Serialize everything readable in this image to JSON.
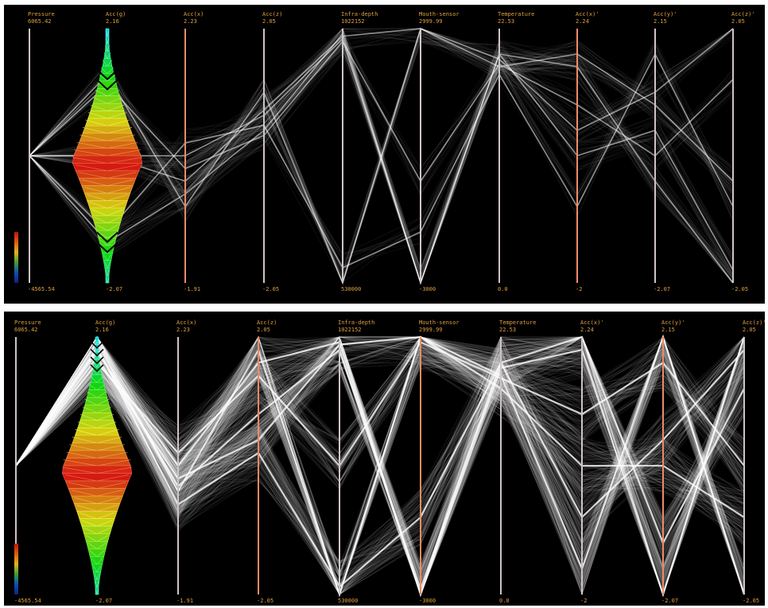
{
  "colors": {
    "background": "#000000",
    "axis_label": "#e0a040",
    "axis_line_default": "#cfc4c4",
    "axis_line_highlight": "#f08a68",
    "polyline": "#ffffff",
    "selection_outline": "#000000"
  },
  "colorbar": {
    "colors": [
      "#c81010",
      "#d86010",
      "#e8b020",
      "#40a030",
      "#1050b0",
      "#102080"
    ]
  },
  "chart_data": [
    {
      "type": "parallel-coordinates",
      "panel": "top",
      "density": "sparse",
      "axes": [
        {
          "name": "Pressure",
          "max": "6065.42",
          "min": "-4565.54",
          "highlight": false
        },
        {
          "name": "Acc(g)",
          "max": "2.16",
          "min": "-2.07",
          "highlight": false,
          "violin": true
        },
        {
          "name": "Acc(x)",
          "max": "2.23",
          "min": "-1.91",
          "highlight": true
        },
        {
          "name": "Acc(z)",
          "max": "2.05",
          "min": "-2.05",
          "highlight": false
        },
        {
          "name": "Infra-depth",
          "max": "1022152",
          "min": "530000",
          "highlight": false
        },
        {
          "name": "Mouth-sensor",
          "max": "2999.99",
          "min": "-3000",
          "highlight": false
        },
        {
          "name": "Temperature",
          "max": "22.53",
          "min": "0.0",
          "highlight": false
        },
        {
          "name": "Acc(x)'",
          "max": "2.24",
          "min": "-2",
          "highlight": true
        },
        {
          "name": "Acc(y)'",
          "max": "2.15",
          "min": "-2.07",
          "highlight": false
        },
        {
          "name": "Acc(z)'",
          "max": "2.05",
          "min": "-2.05",
          "highlight": false
        }
      ],
      "bundles": [
        {
          "path": [
            0.5,
            0.82,
            0.3,
            0.75,
            0.0,
            1.0,
            0.85,
            0.9,
            0.7,
            0.4
          ],
          "weight": 0.5
        },
        {
          "path": [
            0.5,
            0.16,
            0.35,
            0.6,
            0.98,
            0.0,
            0.9,
            0.85,
            0.4,
            0.0
          ],
          "weight": 0.45
        },
        {
          "path": [
            0.5,
            0.5,
            0.4,
            0.68,
            0.97,
            1.0,
            0.88,
            0.6,
            0.75,
            1.0
          ],
          "weight": 0.3
        },
        {
          "path": [
            0.5,
            0.2,
            0.55,
            0.62,
            0.06,
            0.2,
            0.82,
            0.3,
            0.9,
            0.3
          ],
          "weight": 0.2
        },
        {
          "path": [
            0.5,
            0.78,
            0.45,
            0.58,
            0.95,
            0.4,
            0.86,
            0.7,
            0.5,
            0.8
          ],
          "weight": 0.2
        },
        {
          "path": [
            0.5,
            0.5,
            0.5,
            0.66,
            0.96,
            0.0,
            0.9,
            0.5,
            0.6,
            0.05
          ],
          "weight": 0.35
        }
      ]
    },
    {
      "type": "parallel-coordinates",
      "panel": "bottom",
      "density": "dense",
      "axes": [
        {
          "name": "Pressure",
          "max": "6065.42",
          "min": "-4565.54",
          "highlight": false
        },
        {
          "name": "Acc(g)",
          "max": "2.16",
          "min": "-2.07",
          "highlight": false,
          "violin": true
        },
        {
          "name": "Acc(x)",
          "max": "2.23",
          "min": "-1.91",
          "highlight": false
        },
        {
          "name": "Acc(z)",
          "max": "2.05",
          "min": "-2.05",
          "highlight": true
        },
        {
          "name": "Infra-depth",
          "max": "1022152",
          "min": "530000",
          "highlight": false
        },
        {
          "name": "Mouth-sensor",
          "max": "2999.99",
          "min": "-3000",
          "highlight": true
        },
        {
          "name": "Temperature",
          "max": "22.53",
          "min": "0.0",
          "highlight": false
        },
        {
          "name": "Acc(x)'",
          "max": "2.24",
          "min": "-2",
          "highlight": false
        },
        {
          "name": "Acc(y)'",
          "max": "2.15",
          "min": "-2.07",
          "highlight": true
        },
        {
          "name": "Acc(z)'",
          "max": "2.05",
          "min": "-2.05",
          "highlight": false
        }
      ],
      "bundles": [
        {
          "path": [
            0.5,
            0.98,
            0.4,
            0.95,
            0.0,
            1.0,
            0.85,
            0.1,
            1.0,
            0.0
          ],
          "weight": 0.6
        },
        {
          "path": [
            0.5,
            0.94,
            0.5,
            0.9,
            0.98,
            0.0,
            0.88,
            0.95,
            0.0,
            1.0
          ],
          "weight": 0.55
        },
        {
          "path": [
            0.5,
            0.92,
            0.45,
            0.6,
            0.97,
            1.0,
            0.8,
            0.5,
            0.5,
            0.3
          ],
          "weight": 0.5
        },
        {
          "path": [
            0.5,
            0.96,
            0.35,
            0.55,
            0.03,
            0.3,
            0.9,
            1.0,
            0.2,
            0.8
          ],
          "weight": 0.45
        },
        {
          "path": [
            0.5,
            0.9,
            0.55,
            0.85,
            0.5,
            0.98,
            0.84,
            0.7,
            0.9,
            0.5
          ],
          "weight": 0.4
        },
        {
          "path": [
            0.5,
            0.95,
            0.42,
            0.7,
            0.95,
            0.02,
            0.9,
            0.3,
            0.6,
            0.95
          ],
          "weight": 0.4
        }
      ]
    }
  ]
}
